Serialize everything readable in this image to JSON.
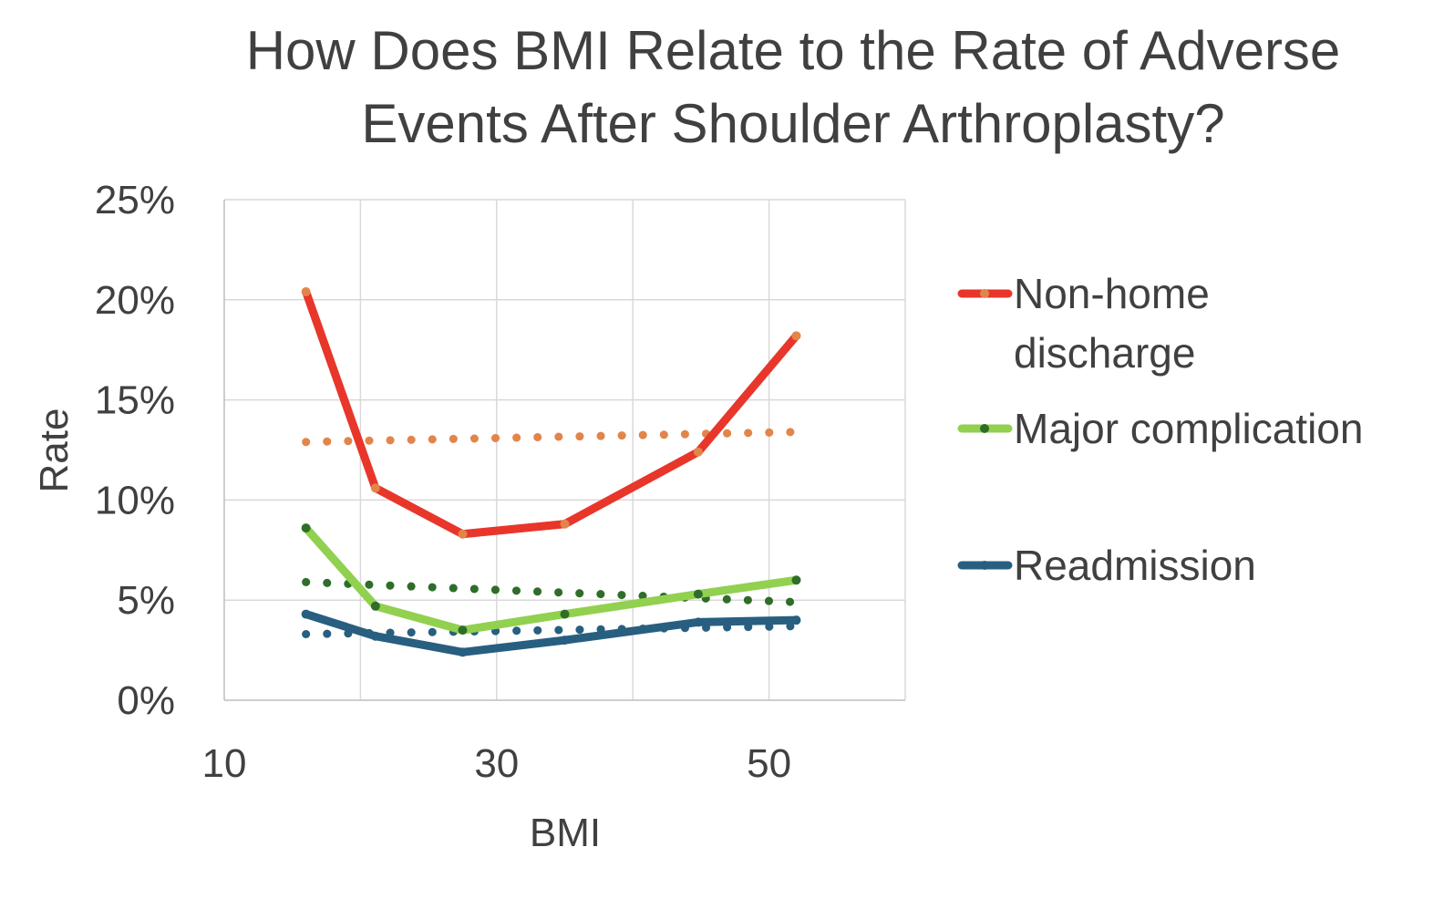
{
  "chart_data": {
    "type": "line",
    "title_lines": [
      "How Does BMI Relate to the Rate of Adverse",
      "Events After Shoulder Arthroplasty?"
    ],
    "xlabel": "BMI",
    "ylabel": "Rate",
    "xlim": [
      10,
      60
    ],
    "ylim": [
      0,
      0.25
    ],
    "x_ticks": [
      {
        "value": 10,
        "label": "10"
      },
      {
        "value": 30,
        "label": "30"
      },
      {
        "value": 50,
        "label": "50"
      }
    ],
    "y_ticks": [
      {
        "value": 0,
        "label": "0%"
      },
      {
        "value": 0.05,
        "label": "5%"
      },
      {
        "value": 0.1,
        "label": "10%"
      },
      {
        "value": 0.15,
        "label": "15%"
      },
      {
        "value": 0.2,
        "label": "20%"
      },
      {
        "value": 0.25,
        "label": "25%"
      }
    ],
    "grid": true,
    "legend_position": "right",
    "series": [
      {
        "name": "Non-home discharge",
        "legend_lines": [
          "Non-home",
          "discharge"
        ],
        "color": "#e8362a",
        "marker_color": "#e2854a",
        "x": [
          16,
          21.1,
          27.5,
          35,
          44.8,
          52
        ],
        "values": [
          0.204,
          0.106,
          0.083,
          0.088,
          0.124,
          0.182
        ],
        "trend": {
          "color": "#e2854a",
          "start": 0.129,
          "end": 0.134
        }
      },
      {
        "name": "Major complication",
        "legend_lines": [
          "Major complication"
        ],
        "color": "#92d050",
        "marker_color": "#2f6e28",
        "x": [
          16,
          21.1,
          27.5,
          35,
          44.8,
          52
        ],
        "values": [
          0.086,
          0.047,
          0.035,
          0.043,
          0.053,
          0.06
        ],
        "trend": {
          "color": "#2f6e28",
          "start": 0.059,
          "end": 0.049
        }
      },
      {
        "name": "Readmission",
        "legend_lines": [
          "Readmission"
        ],
        "color": "#285f80",
        "marker_color": "#285f80",
        "x": [
          16,
          21.1,
          27.5,
          35,
          44.8,
          52
        ],
        "values": [
          0.043,
          0.032,
          0.024,
          0.03,
          0.039,
          0.04
        ],
        "trend": {
          "color": "#285f80",
          "start": 0.033,
          "end": 0.037
        }
      }
    ]
  }
}
